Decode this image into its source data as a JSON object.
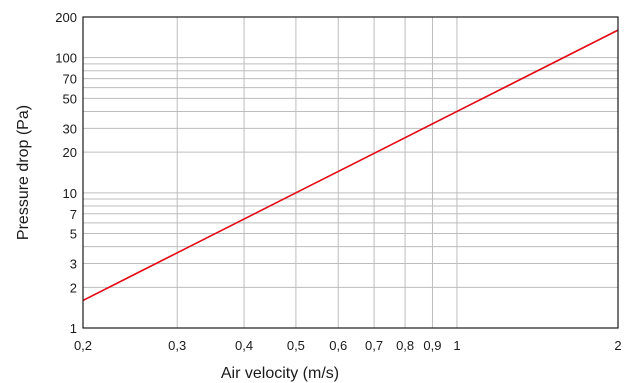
{
  "chart_data": {
    "type": "line",
    "x_scale": "log",
    "y_scale": "log",
    "xlabel": "Air velocity (m/s)",
    "ylabel": "Pressure drop (Pa)",
    "xlim": [
      0.2,
      2
    ],
    "ylim": [
      1,
      200
    ],
    "grid": true,
    "x_ticks": [
      {
        "value": 0.2,
        "label": "0,2"
      },
      {
        "value": 0.3,
        "label": "0,3"
      },
      {
        "value": 0.4,
        "label": "0,4"
      },
      {
        "value": 0.5,
        "label": "0,5"
      },
      {
        "value": 0.6,
        "label": "0,6"
      },
      {
        "value": 0.7,
        "label": "0,7"
      },
      {
        "value": 0.8,
        "label": "0,8"
      },
      {
        "value": 0.9,
        "label": "0,9"
      },
      {
        "value": 1,
        "label": "1"
      },
      {
        "value": 2,
        "label": "2"
      }
    ],
    "y_ticks": [
      {
        "value": 1,
        "label": "1"
      },
      {
        "value": 2,
        "label": "2"
      },
      {
        "value": 3,
        "label": "3"
      },
      {
        "value": 5,
        "label": "5"
      },
      {
        "value": 7,
        "label": "7"
      },
      {
        "value": 10,
        "label": "10"
      },
      {
        "value": 20,
        "label": "20"
      },
      {
        "value": 30,
        "label": "30"
      },
      {
        "value": 50,
        "label": "50"
      },
      {
        "value": 70,
        "label": "70"
      },
      {
        "value": 100,
        "label": "100"
      },
      {
        "value": 200,
        "label": "200"
      }
    ],
    "x_grid": [
      0.3,
      0.4,
      0.5,
      0.6,
      0.7,
      0.8,
      0.9,
      1
    ],
    "y_grid": [
      2,
      3,
      4,
      5,
      6,
      7,
      8,
      9,
      10,
      20,
      30,
      40,
      50,
      60,
      70,
      80,
      90,
      100
    ],
    "series": [
      {
        "color": "#e30613",
        "x": [
          0.2,
          0.3,
          0.5,
          1,
          2
        ],
        "y": [
          1.6,
          3.6,
          10,
          40,
          160
        ]
      }
    ],
    "colors": {
      "line": "#e30613",
      "grid": "#bdbdbd",
      "axis": "#1a1a1a"
    }
  }
}
